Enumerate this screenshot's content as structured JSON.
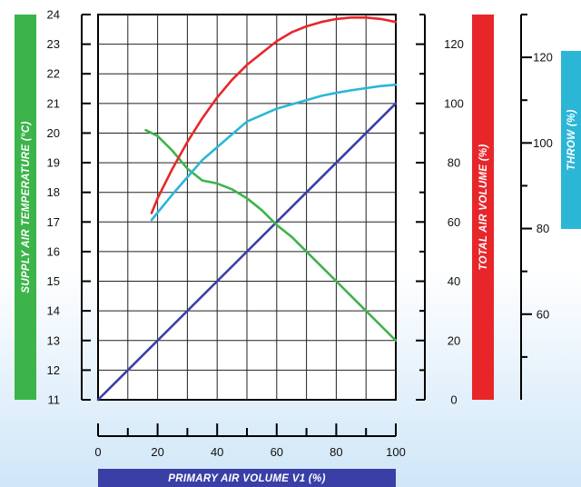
{
  "chart_data": {
    "type": "line",
    "xlabel": "PRIMARY AIR VOLUME V1 (%)",
    "y_left_label": "SUPPLY AIR TEMPERATURE (°C)",
    "y_right1_label": "TOTAL AIR VOLUME (%)",
    "y_right2_label": "THROW (%)",
    "xlim": [
      0,
      100
    ],
    "y_left_lim": [
      11,
      24
    ],
    "y_right1_lim": [
      0,
      130
    ],
    "y_right2_lim": [
      40,
      130
    ],
    "x_ticks": [
      "0",
      "20",
      "40",
      "60",
      "80",
      "100"
    ],
    "y_left_ticks": [
      "11",
      "12",
      "13",
      "14",
      "15",
      "16",
      "17",
      "18",
      "19",
      "20",
      "21",
      "22",
      "23",
      "24"
    ],
    "y_right1_ticks": [
      "0",
      "20",
      "40",
      "60",
      "80",
      "100",
      "120"
    ],
    "y_right2_ticks": [
      "60",
      "80",
      "100",
      "120"
    ],
    "grid": true,
    "colors": {
      "supply": "#3cb44a",
      "total": "#e8262a",
      "throw": "#2bb6d6",
      "primary": "#3a3fa6"
    },
    "series": [
      {
        "key": "supply",
        "axis": "left",
        "x": [
          16,
          20,
          25,
          30,
          35,
          40,
          45,
          50,
          55,
          60,
          65,
          70,
          75,
          80,
          85,
          90,
          95,
          100
        ],
        "values": [
          20.1,
          19.9,
          19.4,
          18.8,
          18.4,
          18.3,
          18.1,
          17.8,
          17.4,
          16.9,
          16.5,
          16.0,
          15.5,
          15.0,
          14.5,
          14.0,
          13.5,
          13.0
        ]
      },
      {
        "key": "total",
        "axis": "right1",
        "x": [
          18,
          20,
          25,
          30,
          35,
          40,
          45,
          50,
          55,
          60,
          65,
          70,
          75,
          80,
          85,
          90,
          95,
          100
        ],
        "values": [
          63,
          68,
          78,
          87,
          95,
          102,
          108,
          113,
          117,
          121,
          124,
          126,
          127.5,
          128.5,
          129,
          129,
          128.5,
          127.5
        ]
      },
      {
        "key": "throw",
        "axis": "right2",
        "x": [
          18,
          25,
          30,
          35,
          40,
          45,
          50,
          55,
          60,
          65,
          70,
          75,
          80,
          85,
          90,
          95,
          100
        ],
        "values": [
          82,
          88,
          92,
          96,
          99,
          102,
          105,
          106.5,
          108,
          109,
          110,
          111,
          111.7,
          112.3,
          112.8,
          113.3,
          113.6
        ]
      },
      {
        "key": "primary",
        "axis": "right1",
        "x": [
          0,
          100
        ],
        "values": [
          0,
          100
        ]
      }
    ]
  }
}
